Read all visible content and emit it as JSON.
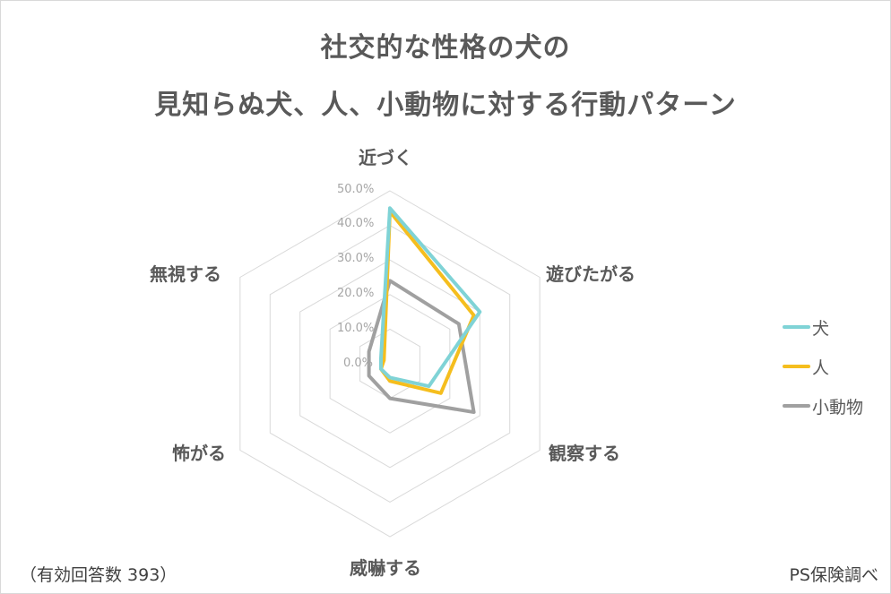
{
  "title": {
    "line1": "社交的な性格の犬の",
    "line2": "見知らぬ犬、人、小動物に対する行動パターン"
  },
  "footer": {
    "sample_size": "（有効回答数 393）",
    "source": "PS保険調べ"
  },
  "colors": {
    "dog": "#7fd3d6",
    "person": "#f5be1e",
    "small_animal": "#a0a0a0",
    "grid": "#d9d9d9"
  },
  "chart_data": {
    "type": "radar",
    "title": "社交的な性格の犬の 見知らぬ犬、人、小動物に対する行動パターン",
    "categories": [
      "近づく",
      "遊びたがる",
      "観察する",
      "威嚇する",
      "怖がる",
      "無視する"
    ],
    "series": [
      {
        "name": "犬",
        "color": "#7fd3d6",
        "values": [
          45,
          30,
          13,
          4,
          3,
          3
        ]
      },
      {
        "name": "人",
        "color": "#f5be1e",
        "values": [
          44,
          28,
          17,
          5,
          3,
          2
        ]
      },
      {
        "name": "小動物",
        "color": "#a0a0a0",
        "values": [
          24,
          23,
          28,
          10,
          7,
          7
        ]
      }
    ],
    "radial_ticks": [
      "0.0%",
      "10.0%",
      "20.0%",
      "30.0%",
      "40.0%",
      "50.0%"
    ],
    "rlim": [
      0,
      50
    ],
    "unit": "%",
    "grid": true,
    "legend_position": "right",
    "annotations": [
      "（有効回答数 393）",
      "PS保険調べ"
    ]
  }
}
